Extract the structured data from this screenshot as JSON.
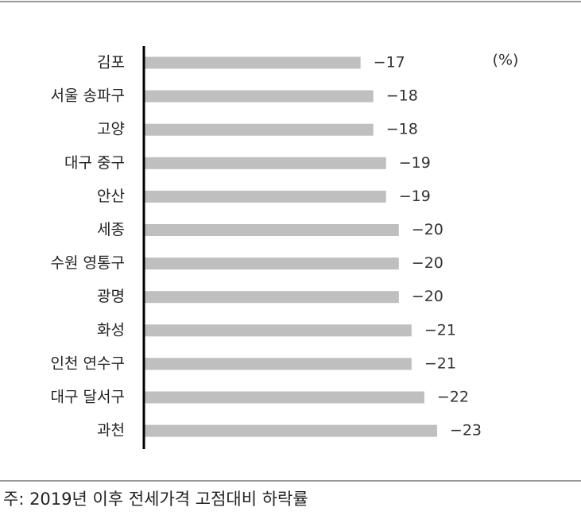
{
  "chart_data": {
    "type": "bar",
    "orientation": "horizontal",
    "unit_label": "(%)",
    "note": "주: 2019년 이후 전세가격 고점대비 하락률",
    "categories": [
      "김포",
      "서울 송파구",
      "고양",
      "대구 중구",
      "안산",
      "세종",
      "수원 영통구",
      "광명",
      "화성",
      "인천 연수구",
      "대구 달서구",
      "과천"
    ],
    "values": [
      -17,
      -18,
      -18,
      -19,
      -19,
      -20,
      -20,
      -20,
      -21,
      -21,
      -22,
      -23
    ],
    "value_labels": [
      "−17",
      "−18",
      "−18",
      "−19",
      "−19",
      "−20",
      "−20",
      "−20",
      "−21",
      "−21",
      "−22",
      "−23"
    ],
    "color": "#bfbfbf",
    "xlim": [
      0,
      -25
    ]
  }
}
